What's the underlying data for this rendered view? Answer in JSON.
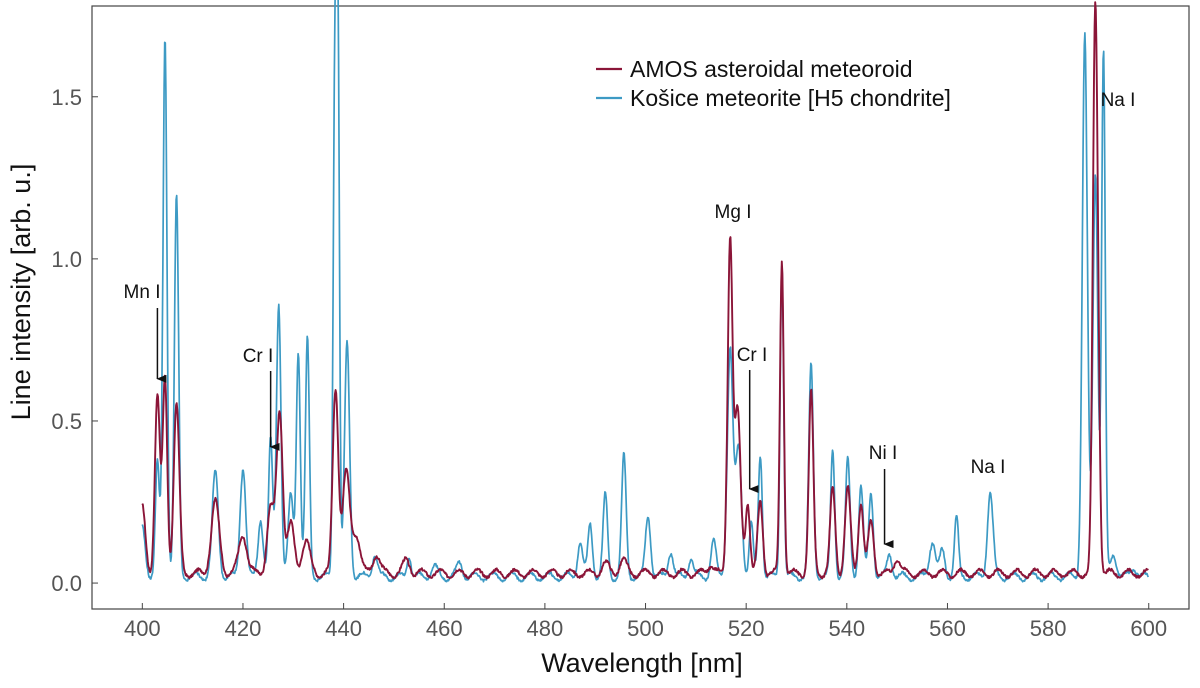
{
  "chart_data": {
    "type": "line",
    "xlabel": "Wavelength [nm]",
    "ylabel": "Line intensity [arb. u.]",
    "xlim": [
      390,
      608
    ],
    "ylim": [
      -0.08,
      1.78
    ],
    "xticks": [
      400,
      420,
      440,
      460,
      480,
      500,
      520,
      540,
      560,
      580,
      600
    ],
    "yticks": [
      0.0,
      0.5,
      1.0,
      1.5
    ],
    "ytick_labels": [
      "0.0",
      "0.5",
      "1.0",
      "1.5"
    ],
    "grid": false,
    "legend_position": "top-right",
    "series": [
      {
        "name": "AMOS asteroidal meteoroid",
        "color": "#8B1538",
        "baseline": 0.03,
        "peaks": [
          [
            400,
            0.2,
            0.6
          ],
          [
            403,
            0.55,
            0.5
          ],
          [
            404.5,
            0.6,
            0.45
          ],
          [
            406.8,
            0.52,
            0.55
          ],
          [
            414.5,
            0.22,
            0.8
          ],
          [
            420,
            0.12,
            0.8
          ],
          [
            425.5,
            0.2,
            0.7
          ],
          [
            427.3,
            0.5,
            0.6
          ],
          [
            429.5,
            0.15,
            0.7
          ],
          [
            432.5,
            0.1,
            0.8
          ],
          [
            438.4,
            0.57,
            0.55
          ],
          [
            440.5,
            0.31,
            0.7
          ],
          [
            442.5,
            0.12,
            0.8
          ],
          [
            446.5,
            0.06,
            0.7
          ],
          [
            452.5,
            0.04,
            0.7
          ],
          [
            492,
            0.03,
            0.7
          ],
          [
            495.5,
            0.04,
            0.7
          ],
          [
            513,
            0.03,
            0.6
          ],
          [
            516.8,
            1.03,
            0.48
          ],
          [
            518.3,
            0.5,
            0.6
          ],
          [
            520.3,
            0.22,
            0.45
          ],
          [
            522.8,
            0.22,
            0.5
          ],
          [
            527.1,
            0.97,
            0.38
          ],
          [
            532.9,
            0.56,
            0.45
          ],
          [
            537.2,
            0.26,
            0.5
          ],
          [
            540.2,
            0.26,
            0.55
          ],
          [
            542.8,
            0.22,
            0.5
          ],
          [
            544.8,
            0.16,
            0.55
          ],
          [
            550,
            0.05,
            0.6
          ],
          [
            589.3,
            1.57,
            0.45
          ],
          [
            589.9,
            0.5,
            0.4
          ]
        ]
      },
      {
        "name": "Košice meteorite [H5 chondrite]",
        "color": "#3D9AC4",
        "baseline": 0.02,
        "peaks": [
          [
            400,
            0.15,
            0.6
          ],
          [
            403,
            0.35,
            0.4
          ],
          [
            404.5,
            1.67,
            0.4
          ],
          [
            406.8,
            1.17,
            0.42
          ],
          [
            414.5,
            0.32,
            0.6
          ],
          [
            420,
            0.34,
            0.55
          ],
          [
            423.5,
            0.18,
            0.5
          ],
          [
            425.5,
            0.42,
            0.4
          ],
          [
            427.1,
            0.85,
            0.45
          ],
          [
            429.5,
            0.25,
            0.5
          ],
          [
            431,
            0.7,
            0.4
          ],
          [
            432.8,
            0.73,
            0.4
          ],
          [
            438.3,
            1.6,
            0.35
          ],
          [
            438.9,
            1.45,
            0.3
          ],
          [
            440.7,
            0.72,
            0.5
          ],
          [
            446.2,
            0.07,
            0.5
          ],
          [
            453,
            0.07,
            0.4
          ],
          [
            458,
            0.03,
            0.6
          ],
          [
            463,
            0.04,
            0.6
          ],
          [
            487,
            0.11,
            0.5
          ],
          [
            489,
            0.16,
            0.45
          ],
          [
            492,
            0.25,
            0.45
          ],
          [
            495.7,
            0.37,
            0.45
          ],
          [
            500.5,
            0.19,
            0.5
          ],
          [
            505,
            0.08,
            0.5
          ],
          [
            509,
            0.06,
            0.5
          ],
          [
            513.5,
            0.11,
            0.5
          ],
          [
            516.8,
            0.7,
            0.55
          ],
          [
            518.5,
            0.4,
            0.6
          ],
          [
            521,
            0.16,
            0.4
          ],
          [
            522.8,
            0.38,
            0.4
          ],
          [
            527.1,
            0.97,
            0.35
          ],
          [
            532.9,
            0.65,
            0.45
          ],
          [
            537.2,
            0.39,
            0.4
          ],
          [
            540.2,
            0.36,
            0.45
          ],
          [
            542.8,
            0.28,
            0.45
          ],
          [
            544.8,
            0.26,
            0.45
          ],
          [
            548.5,
            0.07,
            0.5
          ],
          [
            557,
            0.11,
            0.6
          ],
          [
            559,
            0.08,
            0.5
          ],
          [
            561.8,
            0.18,
            0.4
          ],
          [
            568.5,
            0.26,
            0.55
          ],
          [
            587.3,
            1.67,
            0.5
          ],
          [
            589.4,
            1.25,
            0.5
          ],
          [
            591,
            1.62,
            0.35
          ],
          [
            593,
            0.07,
            0.6
          ],
          [
            597,
            0.03,
            0.6
          ]
        ]
      }
    ],
    "annotations": [
      {
        "label": "Mn I",
        "x": 403
      },
      {
        "label": "Cr I",
        "x": 425.5
      },
      {
        "label": "Cr I",
        "x": 520.7
      },
      {
        "label": "Ni I",
        "x": 547.5
      },
      {
        "label": "Mg I",
        "x": 517
      },
      {
        "label": "Na I",
        "x": 568.5
      },
      {
        "label": "Na I",
        "x": 592.5
      }
    ]
  }
}
